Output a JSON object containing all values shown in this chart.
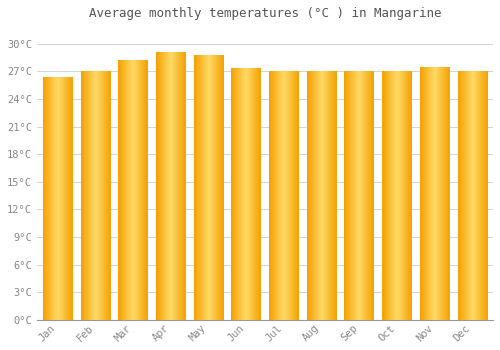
{
  "title": "Average monthly temperatures (°C ) in Mangarine",
  "months": [
    "Jan",
    "Feb",
    "Mar",
    "Apr",
    "May",
    "Jun",
    "Jul",
    "Aug",
    "Sep",
    "Oct",
    "Nov",
    "Dec"
  ],
  "values": [
    26.3,
    27.0,
    28.2,
    29.1,
    28.7,
    27.3,
    27.0,
    27.0,
    27.0,
    27.0,
    27.4,
    27.0
  ],
  "bar_color_center": "#FFD966",
  "bar_color_edge": "#F5A000",
  "background_color": "#FFFFFF",
  "grid_color": "#CCCCCC",
  "title_fontsize": 9,
  "tick_fontsize": 7.5,
  "ytick_labels": [
    "0°C",
    "3°C",
    "6°C",
    "9°C",
    "12°C",
    "15°C",
    "18°C",
    "21°C",
    "24°C",
    "27°C",
    "30°C"
  ],
  "ytick_values": [
    0,
    3,
    6,
    9,
    12,
    15,
    18,
    21,
    24,
    27,
    30
  ],
  "ylim": [
    0,
    32
  ],
  "font_family": "monospace"
}
